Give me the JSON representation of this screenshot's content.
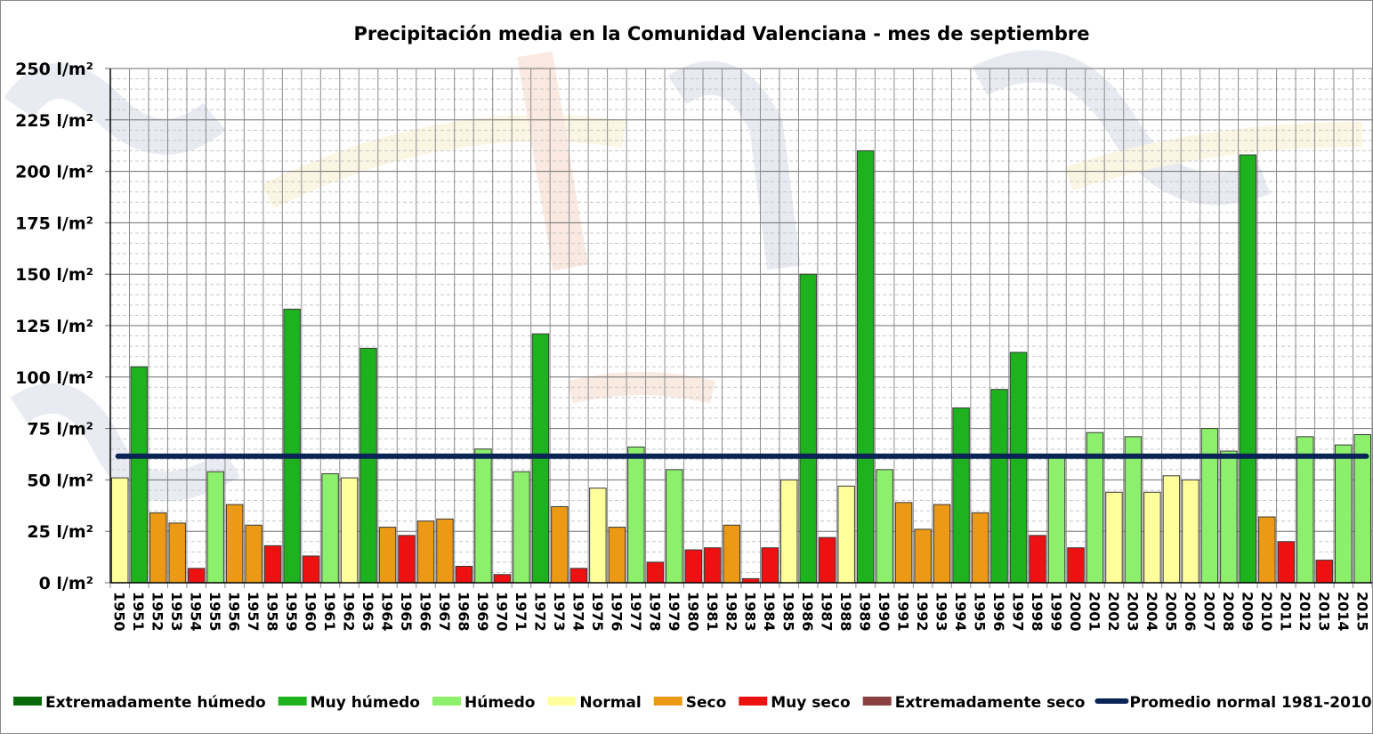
{
  "chart_data": {
    "type": "bar",
    "title": "Precipitación media en la Comunidad Valenciana - mes de septiembre",
    "xlabel": "",
    "ylabel": "",
    "unit": "l/m²",
    "ylim": [
      0,
      250
    ],
    "y_ticks": [
      "0 l/m²",
      "25 l/m²",
      "50 l/m²",
      "75 l/m²",
      "100 l/m²",
      "125 l/m²",
      "150 l/m²",
      "175 l/m²",
      "200 l/m²",
      "225 l/m²",
      "250 l/m²"
    ],
    "grid": true,
    "legend_position": "bottom",
    "categories": [
      "1950",
      "1951",
      "1952",
      "1953",
      "1954",
      "1955",
      "1956",
      "1957",
      "1958",
      "1959",
      "1960",
      "1961",
      "1962",
      "1963",
      "1964",
      "1965",
      "1966",
      "1967",
      "1968",
      "1969",
      "1970",
      "1971",
      "1972",
      "1973",
      "1974",
      "1975",
      "1976",
      "1977",
      "1978",
      "1979",
      "1980",
      "1981",
      "1982",
      "1983",
      "1984",
      "1985",
      "1986",
      "1987",
      "1988",
      "1989",
      "1990",
      "1991",
      "1992",
      "1993",
      "1994",
      "1995",
      "1996",
      "1997",
      "1998",
      "1999",
      "2000",
      "2001",
      "2002",
      "2003",
      "2004",
      "2005",
      "2006",
      "2007",
      "2008",
      "2009",
      "2010",
      "2011",
      "2012",
      "2013",
      "2014",
      "2015"
    ],
    "values": [
      51,
      105,
      34,
      29,
      7,
      54,
      38,
      28,
      18,
      133,
      13,
      53,
      51,
      114,
      27,
      23,
      30,
      31,
      8,
      65,
      4,
      54,
      121,
      37,
      7,
      46,
      27,
      66,
      10,
      55,
      16,
      17,
      28,
      2,
      17,
      50,
      150,
      22,
      47,
      210,
      55,
      39,
      26,
      38,
      85,
      34,
      94,
      112,
      23,
      62,
      17,
      73,
      44,
      71,
      44,
      52,
      50,
      75,
      64,
      208,
      32,
      20,
      71,
      11,
      67,
      72
    ],
    "classes": [
      "N",
      "MH",
      "S",
      "S",
      "MS",
      "H",
      "S",
      "S",
      "MS",
      "MH",
      "MS",
      "H",
      "N",
      "MH",
      "S",
      "MS",
      "S",
      "S",
      "MS",
      "H",
      "MS",
      "H",
      "MH",
      "S",
      "MS",
      "N",
      "S",
      "H",
      "MS",
      "H",
      "MS",
      "MS",
      "S",
      "MS",
      "MS",
      "N",
      "MH",
      "MS",
      "N",
      "MH",
      "H",
      "S",
      "S",
      "S",
      "MH",
      "S",
      "MH",
      "MH",
      "MS",
      "H",
      "MS",
      "H",
      "N",
      "H",
      "N",
      "N",
      "N",
      "H",
      "H",
      "MH",
      "S",
      "MS",
      "H",
      "MS",
      "H",
      "H"
    ],
    "reference_line": {
      "name": "Promedio normal 1981-2010",
      "value": 61.5,
      "color": "#0a2455"
    },
    "legend": [
      {
        "key": "EH",
        "label": "Extremadamente húmedo",
        "color": "#0a6a0a"
      },
      {
        "key": "MH",
        "label": "Muy húmedo",
        "color": "#1fb21f"
      },
      {
        "key": "H",
        "label": "Húmedo",
        "color": "#8cf06c"
      },
      {
        "key": "N",
        "label": "Normal",
        "color": "#ffff9c"
      },
      {
        "key": "S",
        "label": "Seco",
        "color": "#ec9a16"
      },
      {
        "key": "MS",
        "label": "Muy seco",
        "color": "#ee1111"
      },
      {
        "key": "ES",
        "label": "Extremadamente seco",
        "color": "#8b4040"
      }
    ]
  },
  "watermark_text": "meteo"
}
